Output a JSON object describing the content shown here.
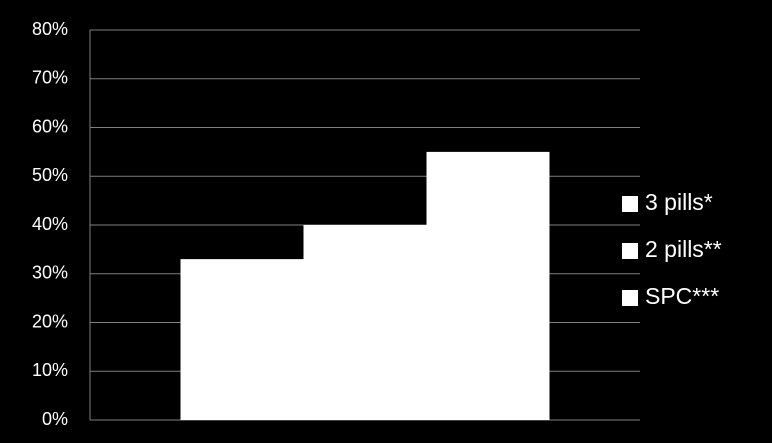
{
  "chart_data": {
    "type": "bar",
    "categories": [
      null
    ],
    "series": [
      {
        "name": "3 pills*",
        "color": "#ffffff",
        "values": [
          33
        ]
      },
      {
        "name": "2 pills**",
        "color": "#ffffff",
        "values": [
          40
        ]
      },
      {
        "name": "SPC***",
        "color": "#ffffff",
        "values": [
          55
        ]
      }
    ],
    "ylim": [
      0,
      80
    ],
    "yticks": [
      {
        "value": 0,
        "label": "0%"
      },
      {
        "value": 10,
        "label": "10%"
      },
      {
        "value": 20,
        "label": "20%"
      },
      {
        "value": 30,
        "label": "30%"
      },
      {
        "value": 40,
        "label": "40%"
      },
      {
        "value": 50,
        "label": "50%"
      },
      {
        "value": 60,
        "label": "60%"
      },
      {
        "value": 70,
        "label": "70%"
      },
      {
        "value": 80,
        "label": "80%"
      }
    ],
    "grid": true,
    "legend": "right"
  }
}
